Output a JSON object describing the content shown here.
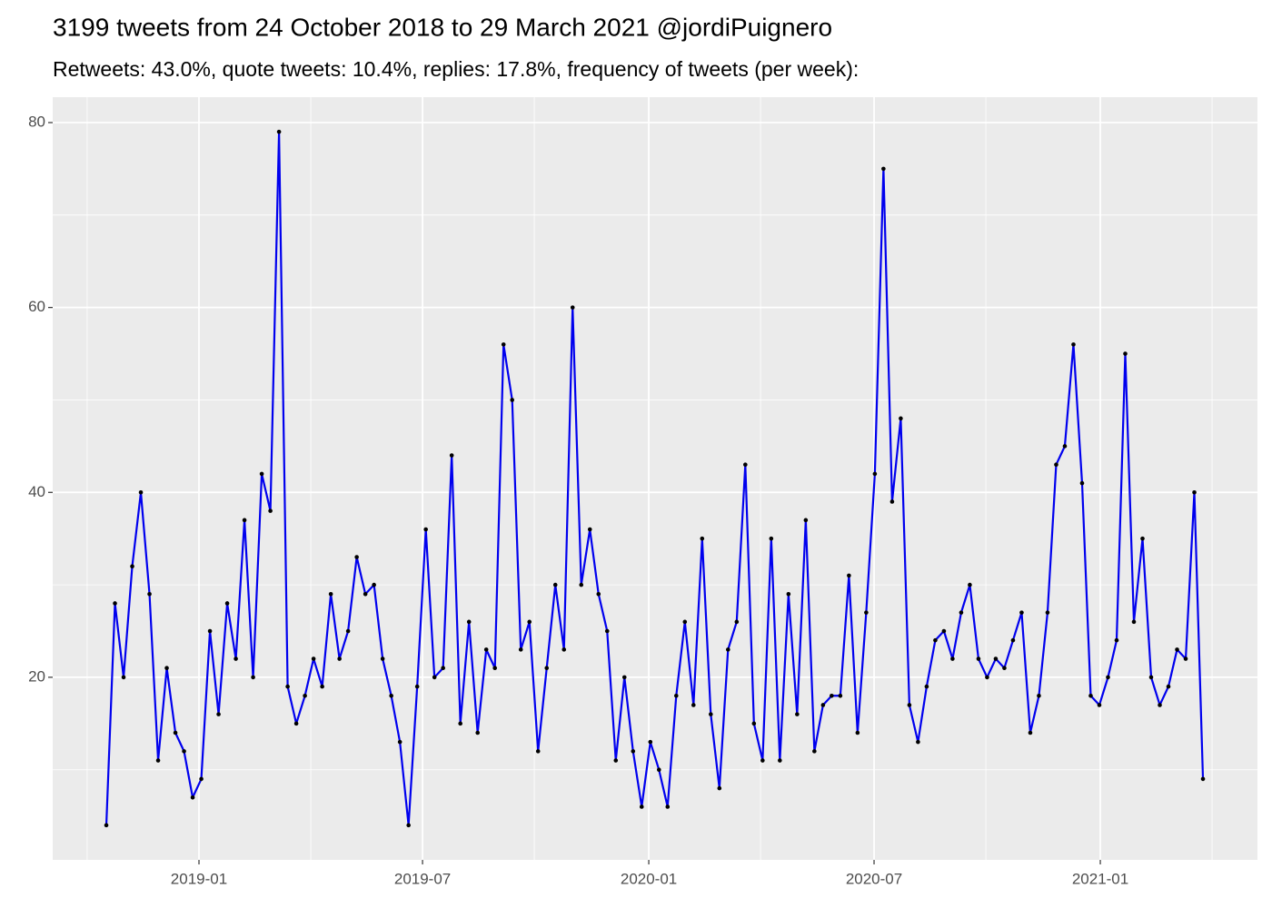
{
  "chart_data": {
    "type": "line",
    "title": "3199 tweets from 24 October 2018 to 29 March 2021 @jordiPuignero",
    "subtitle": "Retweets: 43.0%, quote tweets: 10.4%, replies: 17.8%, frequency of tweets (per week):",
    "color": "#0000ee",
    "point_color": "#000000",
    "grid": true,
    "values": [
      4,
      28,
      20,
      32,
      40,
      29,
      11,
      21,
      14,
      12,
      7,
      9,
      25,
      16,
      28,
      22,
      37,
      20,
      42,
      38,
      79,
      19,
      15,
      18,
      22,
      19,
      29,
      22,
      25,
      33,
      29,
      30,
      22,
      18,
      13,
      4,
      19,
      36,
      20,
      21,
      44,
      15,
      26,
      14,
      23,
      21,
      56,
      50,
      23,
      26,
      12,
      21,
      30,
      23,
      60,
      30,
      36,
      29,
      25,
      11,
      20,
      12,
      6,
      13,
      10,
      6,
      18,
      26,
      17,
      35,
      16,
      8,
      23,
      26,
      43,
      15,
      11,
      35,
      11,
      29,
      16,
      37,
      12,
      17,
      18,
      18,
      31,
      14,
      27,
      42,
      75,
      39,
      48,
      17,
      13,
      19,
      24,
      25,
      22,
      27,
      30,
      22,
      20,
      22,
      21,
      24,
      27,
      14,
      18,
      27,
      43,
      45,
      56,
      41,
      18,
      17,
      20,
      24,
      55,
      26,
      35,
      20,
      17,
      19,
      23,
      22,
      40,
      9
    ],
    "xlim": [
      -6.21,
      133.31
    ],
    "xticks": [
      {
        "value": 10.73,
        "label": "2019-01"
      },
      {
        "value": 36.62,
        "label": "2019-07"
      },
      {
        "value": 62.82,
        "label": "2020-01"
      },
      {
        "value": 88.91,
        "label": "2020-07"
      },
      {
        "value": 115.11,
        "label": "2021-01"
      }
    ],
    "ylim": [
      0.25,
      82.75
    ],
    "yticks": [
      20,
      40,
      60,
      80
    ]
  }
}
